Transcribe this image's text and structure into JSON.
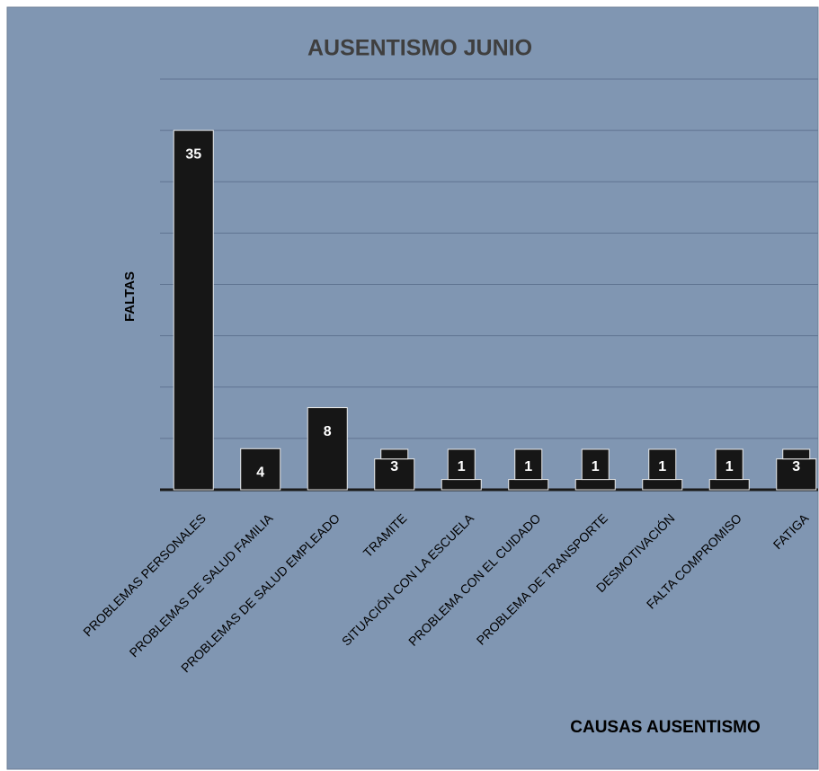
{
  "chart_data": {
    "type": "bar",
    "title": "AUSENTISMO  JUNIO",
    "y_label": "FALTAS",
    "x_label": "CAUSAS AUSENTISMO",
    "categories": [
      "PROBLEMAS PERSONALES",
      "PROBLEMAS DE SALUD FAMILIA",
      "PROBLEMAS DE SALUD EMPLEADO",
      "TRAMITE",
      "SITUACIÓN CON LA ESCUELA",
      "PROBLEMA CON EL CUIDADO",
      "PROBLEMA DE TRANSPORTE",
      "DESMOTIVACIÓN",
      "FALTA COMPROMISO",
      "FATIGA"
    ],
    "values": [
      35,
      4,
      8,
      3,
      1,
      1,
      1,
      1,
      1,
      3
    ],
    "color": "#161616",
    "ylim": [
      0,
      40
    ],
    "yticks": [
      0,
      5,
      10,
      15,
      20,
      25,
      30,
      35,
      40
    ],
    "grid": true
  }
}
